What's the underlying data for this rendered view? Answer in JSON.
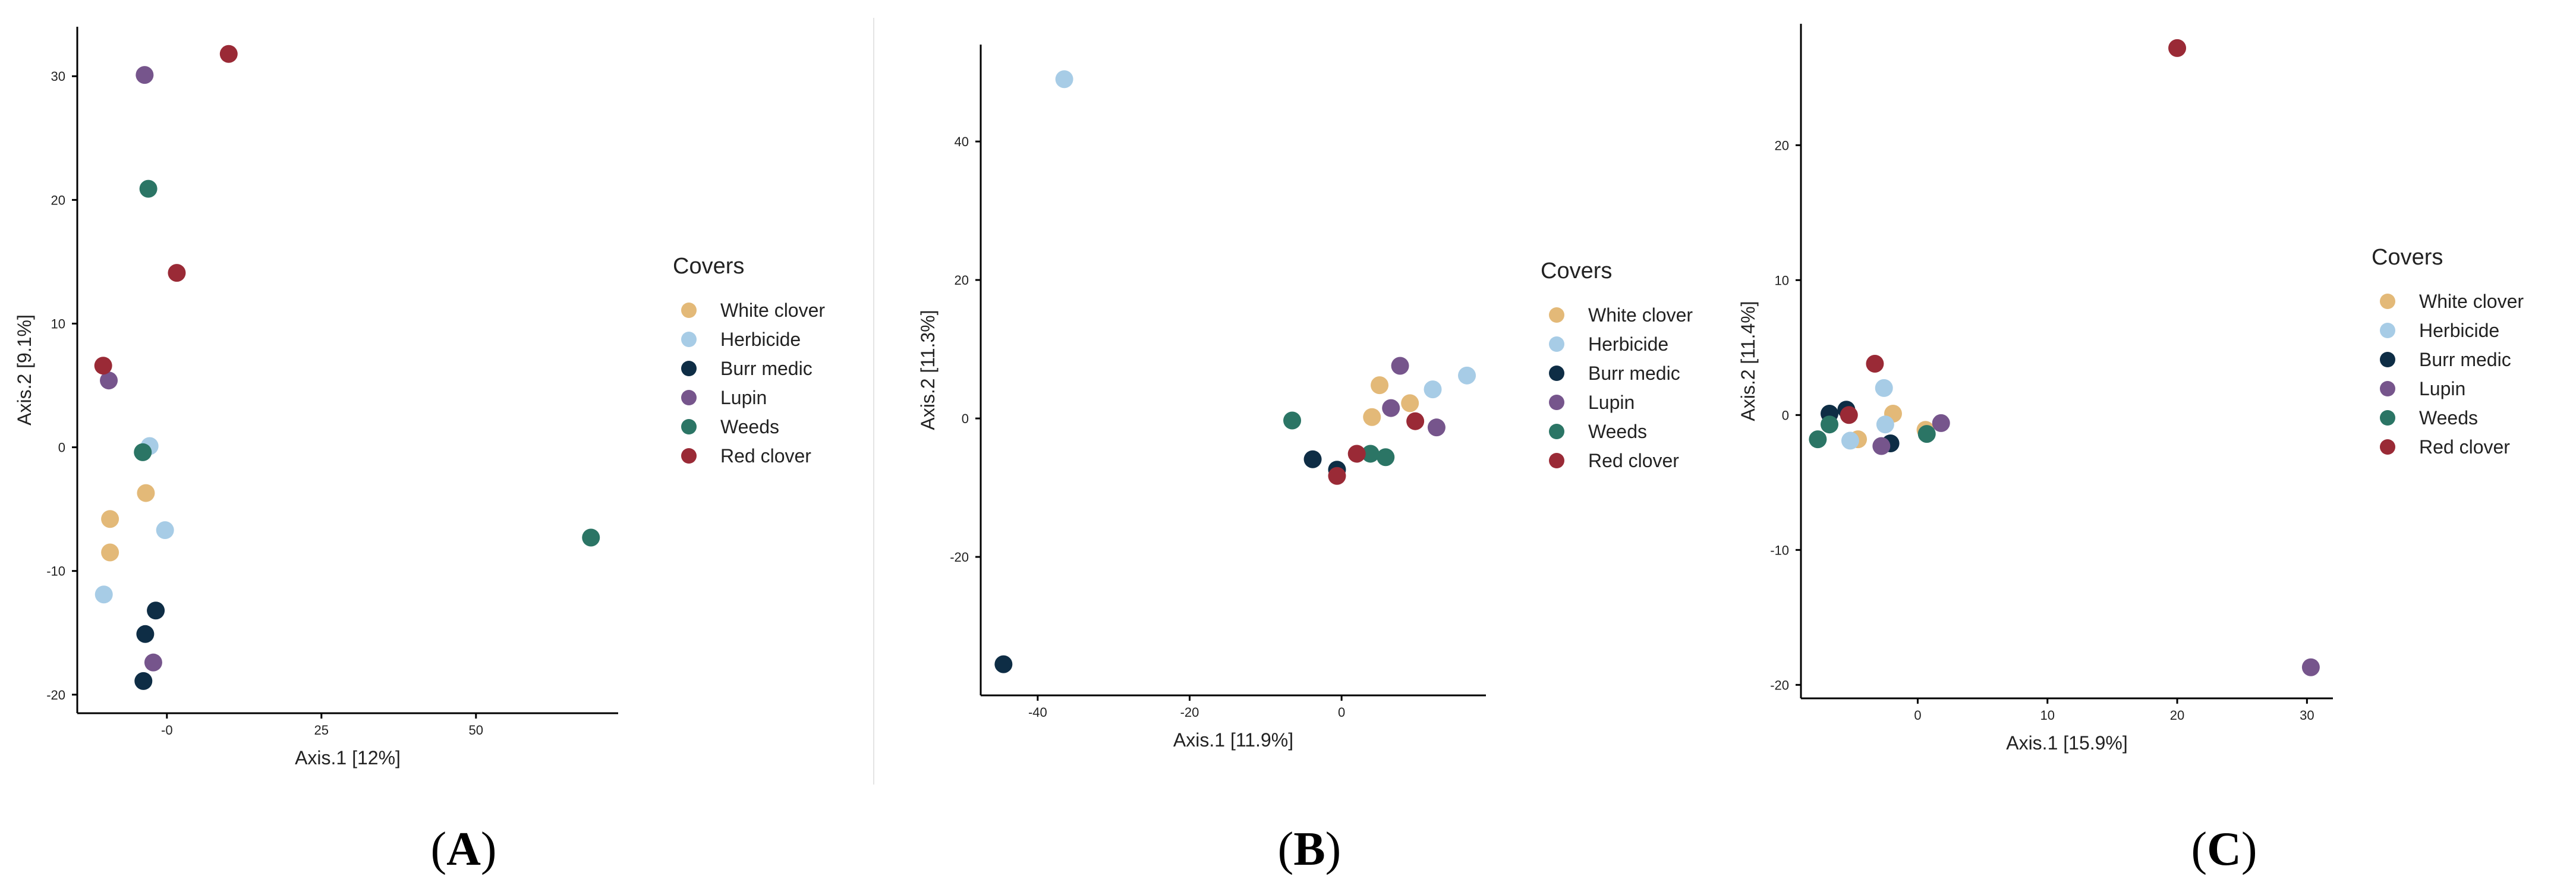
{
  "colors": {
    "White clover": "#e3b978",
    "Herbicide": "#a7cce6",
    "Burr medic": "#0e2d45",
    "Lupin": "#76558c",
    "Weeds": "#2b7565",
    "Red clover": "#9a2a36"
  },
  "chart_data": [
    {
      "type": "scatter",
      "panel": "A",
      "panel_label": "A",
      "xlabel": "Axis.1   [12%]",
      "ylabel": "Axis.2   [9.1%]",
      "xlim": [
        -14.5,
        73
      ],
      "ylim": [
        -21.5,
        34
      ],
      "xticks": [
        0,
        25,
        50
      ],
      "xtick_labels": [
        "-0",
        "25",
        "50"
      ],
      "yticks": [
        -20,
        -10,
        0,
        10,
        20,
        30
      ],
      "legend": {
        "title": "Covers",
        "entries": [
          "White clover",
          "Herbicide",
          "Burr medic",
          "Lupin",
          "Weeds",
          "Red clover"
        ],
        "position": "right"
      },
      "series": [
        {
          "name": "White clover",
          "points": [
            [
              -3.4,
              -3.7
            ],
            [
              -9.2,
              -5.8
            ],
            [
              -9.2,
              -8.5
            ]
          ]
        },
        {
          "name": "Herbicide",
          "points": [
            [
              -2.8,
              0.1
            ],
            [
              -0.3,
              -6.7
            ],
            [
              -10.2,
              -11.9
            ]
          ]
        },
        {
          "name": "Burr medic",
          "points": [
            [
              -1.8,
              -13.2
            ],
            [
              -3.5,
              -15.1
            ],
            [
              -3.8,
              -18.9
            ]
          ]
        },
        {
          "name": "Lupin",
          "points": [
            [
              -3.6,
              30.1
            ],
            [
              -9.4,
              5.4
            ],
            [
              -2.2,
              -17.4
            ]
          ]
        },
        {
          "name": "Weeds",
          "points": [
            [
              -3.0,
              20.9
            ],
            [
              -3.9,
              -0.4
            ],
            [
              68.6,
              -7.3
            ]
          ]
        },
        {
          "name": "Red clover",
          "points": [
            [
              10.0,
              31.8
            ],
            [
              1.6,
              14.1
            ],
            [
              -10.3,
              6.6
            ]
          ]
        }
      ]
    },
    {
      "type": "scatter",
      "panel": "B",
      "panel_label": "B",
      "xlabel": "Axis.1   [11.9%]",
      "ylabel": "Axis.2   [11.3%]",
      "xlim": [
        -47.5,
        19
      ],
      "ylim": [
        -40,
        54
      ],
      "xticks": [
        -40,
        -20,
        0
      ],
      "yticks": [
        -20,
        0,
        20,
        40
      ],
      "legend": {
        "title": "Covers",
        "entries": [
          "White clover",
          "Herbicide",
          "Burr medic",
          "Lupin",
          "Weeds",
          "Red clover"
        ],
        "position": "right"
      },
      "series": [
        {
          "name": "White clover",
          "points": [
            [
              5.0,
              4.8
            ],
            [
              4.0,
              0.2
            ],
            [
              9.0,
              2.2
            ]
          ]
        },
        {
          "name": "Herbicide",
          "points": [
            [
              -36.5,
              49.0
            ],
            [
              12.0,
              4.2
            ],
            [
              16.5,
              6.2
            ]
          ]
        },
        {
          "name": "Burr medic",
          "points": [
            [
              -44.5,
              -35.5
            ],
            [
              -3.8,
              -5.9
            ],
            [
              -0.6,
              -7.4
            ]
          ]
        },
        {
          "name": "Lupin",
          "points": [
            [
              6.5,
              1.5
            ],
            [
              7.7,
              7.6
            ],
            [
              12.5,
              -1.3
            ]
          ]
        },
        {
          "name": "Weeds",
          "points": [
            [
              -6.5,
              -0.3
            ],
            [
              3.8,
              -5.1
            ],
            [
              5.8,
              -5.6
            ]
          ]
        },
        {
          "name": "Red clover",
          "points": [
            [
              2.0,
              -5.1
            ],
            [
              9.7,
              -0.4
            ],
            [
              -0.6,
              -8.3
            ]
          ]
        }
      ]
    },
    {
      "type": "scatter",
      "panel": "C",
      "panel_label": "C",
      "xlabel": "Axis.1   [15.9%]",
      "ylabel": "Axis.2   [11.4%]",
      "xlim": [
        -9,
        32
      ],
      "ylim": [
        -21,
        29
      ],
      "xticks": [
        0,
        10,
        20,
        30
      ],
      "yticks": [
        -20,
        -10,
        0,
        10,
        20
      ],
      "legend": {
        "title": "Covers",
        "entries": [
          "White clover",
          "Herbicide",
          "Burr medic",
          "Lupin",
          "Weeds",
          "Red clover"
        ],
        "position": "right"
      },
      "series": [
        {
          "name": "White clover",
          "points": [
            [
              -1.9,
              0.1
            ],
            [
              -4.6,
              -1.8
            ],
            [
              0.6,
              -1.1
            ]
          ]
        },
        {
          "name": "Herbicide",
          "points": [
            [
              -2.6,
              2.0
            ],
            [
              -2.5,
              -0.7
            ],
            [
              -5.2,
              -1.9
            ]
          ]
        },
        {
          "name": "Burr medic",
          "points": [
            [
              -6.8,
              0.1
            ],
            [
              -5.5,
              0.4
            ],
            [
              -2.1,
              -2.1
            ]
          ]
        },
        {
          "name": "Lupin",
          "points": [
            [
              -2.8,
              -2.3
            ],
            [
              1.8,
              -0.6
            ],
            [
              30.3,
              -18.7
            ]
          ]
        },
        {
          "name": "Weeds",
          "points": [
            [
              -7.7,
              -1.8
            ],
            [
              -6.8,
              -0.7
            ],
            [
              0.7,
              -1.4
            ]
          ]
        },
        {
          "name": "Red clover",
          "points": [
            [
              -3.3,
              3.8
            ],
            [
              -5.3,
              0.0
            ],
            [
              20.0,
              27.2
            ]
          ]
        }
      ]
    }
  ]
}
